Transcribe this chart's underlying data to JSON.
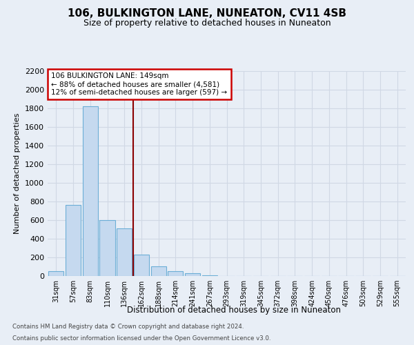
{
  "title": "106, BULKINGTON LANE, NUNEATON, CV11 4SB",
  "subtitle": "Size of property relative to detached houses in Nuneaton",
  "xlabel": "Distribution of detached houses by size in Nuneaton",
  "ylabel": "Number of detached properties",
  "categories": [
    "31sqm",
    "57sqm",
    "83sqm",
    "110sqm",
    "136sqm",
    "162sqm",
    "188sqm",
    "214sqm",
    "241sqm",
    "267sqm",
    "293sqm",
    "319sqm",
    "345sqm",
    "372sqm",
    "398sqm",
    "424sqm",
    "450sqm",
    "476sqm",
    "503sqm",
    "529sqm",
    "555sqm"
  ],
  "values": [
    50,
    760,
    1820,
    600,
    510,
    230,
    105,
    50,
    30,
    10,
    0,
    0,
    0,
    0,
    0,
    0,
    0,
    0,
    0,
    0,
    0
  ],
  "bar_color": "#c5d9ef",
  "bar_edge_color": "#6baed6",
  "vline_x": 4.5,
  "vline_color": "#8b0000",
  "annotation_title": "106 BULKINGTON LANE: 149sqm",
  "annotation_line1": "← 88% of detached houses are smaller (4,581)",
  "annotation_line2": "12% of semi-detached houses are larger (597) →",
  "annotation_facecolor": "#ffffff",
  "annotation_edgecolor": "#cc0000",
  "ylim": [
    0,
    2200
  ],
  "yticks": [
    0,
    200,
    400,
    600,
    800,
    1000,
    1200,
    1400,
    1600,
    1800,
    2000,
    2200
  ],
  "footnote1": "Contains HM Land Registry data © Crown copyright and database right 2024.",
  "footnote2": "Contains public sector information licensed under the Open Government Licence v3.0.",
  "bg_color": "#e8eef6",
  "plot_bg_color": "#e8eef6",
  "grid_color": "#d0d8e4"
}
